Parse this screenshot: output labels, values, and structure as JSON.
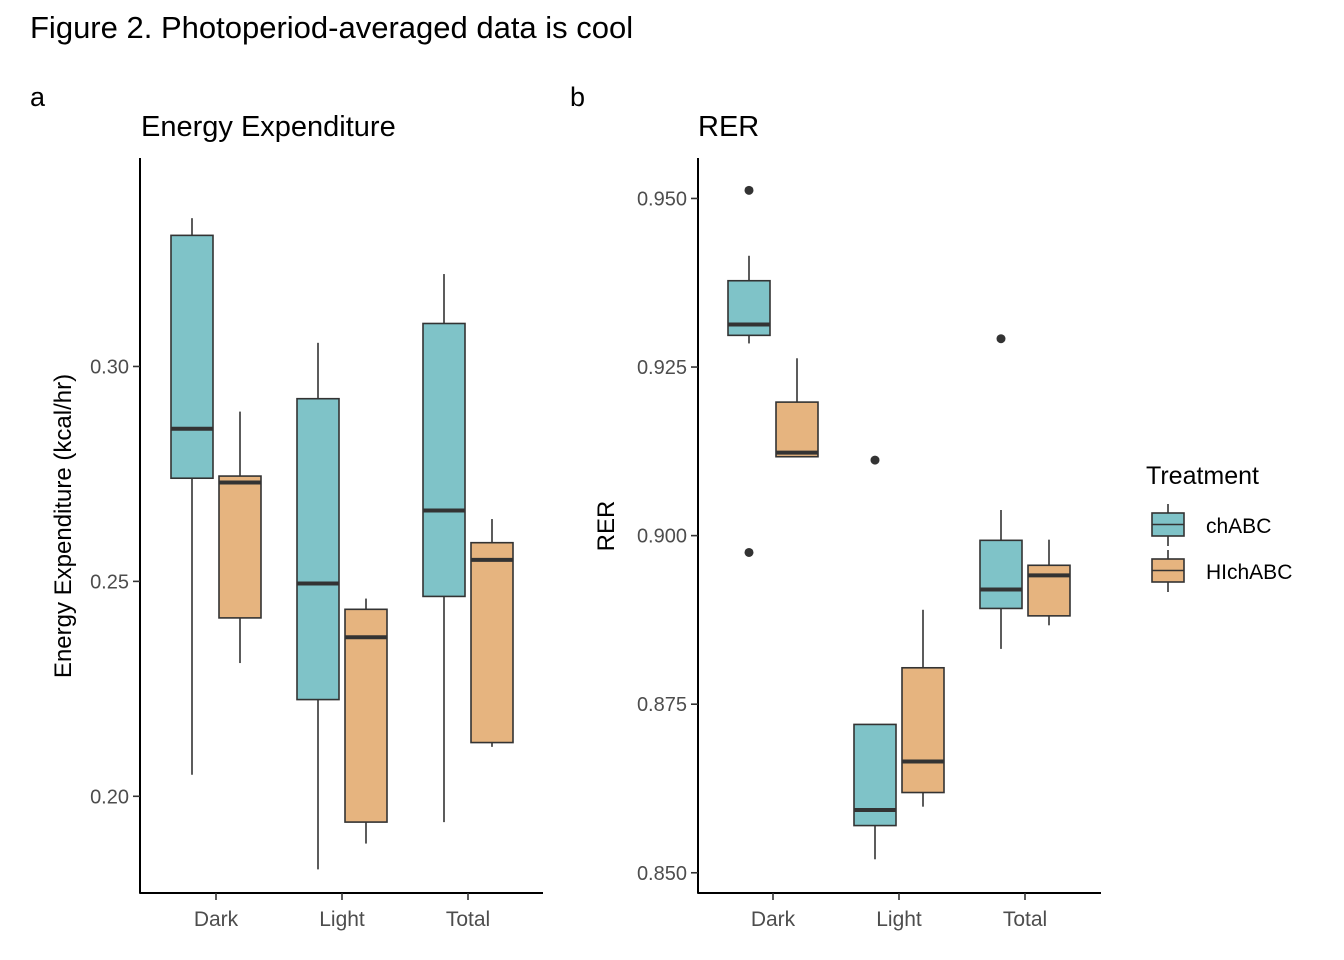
{
  "figure": {
    "title": "Figure 2. Photoperiod-averaged data is cool"
  },
  "colors": {
    "chABC": "#7fc3c8",
    "HIchABC": "#e6b47f",
    "stroke": "#333333",
    "axis": "#000000"
  },
  "legend": {
    "title": "Treatment",
    "placement": "right",
    "items": [
      {
        "label": "chABC",
        "color": "#7fc3c8"
      },
      {
        "label": "HIchABC",
        "color": "#e6b47f"
      }
    ]
  },
  "chart_data": [
    {
      "type": "boxplot",
      "panel_tag": "a",
      "title": "Energy Expenditure",
      "xlabel": "",
      "ylabel": "Energy Expenditure (kcal/hr)",
      "categories": [
        "Dark",
        "Light",
        "Total"
      ],
      "ylim": [
        0.1775,
        0.3485
      ],
      "yticks": [
        0.2,
        0.25,
        0.3
      ],
      "ytick_labels": [
        "0.20",
        "0.25",
        "0.30"
      ],
      "grid": false,
      "series": [
        {
          "name": "chABC",
          "boxes": [
            {
              "category": "Dark",
              "min": 0.205,
              "q1": 0.274,
              "median": 0.2855,
              "q3": 0.3305,
              "max": 0.3345,
              "outliers": []
            },
            {
              "category": "Light",
              "min": 0.183,
              "q1": 0.2225,
              "median": 0.2495,
              "q3": 0.2925,
              "max": 0.3055,
              "outliers": []
            },
            {
              "category": "Total",
              "min": 0.194,
              "q1": 0.2465,
              "median": 0.2665,
              "q3": 0.31,
              "max": 0.3215,
              "outliers": []
            }
          ]
        },
        {
          "name": "HIchABC",
          "boxes": [
            {
              "category": "Dark",
              "min": 0.231,
              "q1": 0.2415,
              "median": 0.273,
              "q3": 0.2745,
              "max": 0.2895,
              "outliers": []
            },
            {
              "category": "Light",
              "min": 0.189,
              "q1": 0.194,
              "median": 0.237,
              "q3": 0.2435,
              "max": 0.246,
              "outliers": []
            },
            {
              "category": "Total",
              "min": 0.2115,
              "q1": 0.2125,
              "median": 0.255,
              "q3": 0.259,
              "max": 0.2645,
              "outliers": []
            }
          ]
        }
      ]
    },
    {
      "type": "boxplot",
      "panel_tag": "b",
      "title": "RER",
      "xlabel": "",
      "ylabel": "RER",
      "categories": [
        "Dark",
        "Light",
        "Total"
      ],
      "ylim": [
        0.847,
        0.956
      ],
      "yticks": [
        0.85,
        0.875,
        0.9,
        0.925,
        0.95
      ],
      "ytick_labels": [
        "0.850",
        "0.875",
        "0.900",
        "0.925",
        "0.950"
      ],
      "grid": false,
      "series": [
        {
          "name": "chABC",
          "boxes": [
            {
              "category": "Dark",
              "min": 0.9285,
              "q1": 0.9297,
              "median": 0.9313,
              "q3": 0.9378,
              "max": 0.9415,
              "outliers": [
                0.9512,
                0.8975
              ]
            },
            {
              "category": "Light",
              "min": 0.852,
              "q1": 0.857,
              "median": 0.8593,
              "q3": 0.872,
              "max": 0.872,
              "outliers": [
                0.9112
              ]
            },
            {
              "category": "Total",
              "min": 0.8832,
              "q1": 0.8892,
              "median": 0.892,
              "q3": 0.8993,
              "max": 0.9038,
              "outliers": [
                0.9292
              ]
            }
          ]
        },
        {
          "name": "HIchABC",
          "boxes": [
            {
              "category": "Dark",
              "min": 0.9117,
              "q1": 0.9117,
              "median": 0.9123,
              "q3": 0.9198,
              "max": 0.9263,
              "outliers": []
            },
            {
              "category": "Light",
              "min": 0.8598,
              "q1": 0.8619,
              "median": 0.8665,
              "q3": 0.8804,
              "max": 0.889,
              "outliers": []
            },
            {
              "category": "Total",
              "min": 0.8867,
              "q1": 0.8881,
              "median": 0.8941,
              "q3": 0.8956,
              "max": 0.8994,
              "outliers": []
            }
          ]
        }
      ]
    }
  ]
}
